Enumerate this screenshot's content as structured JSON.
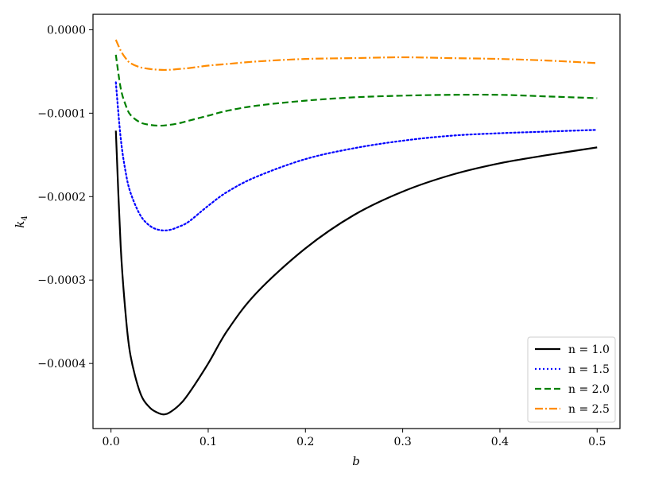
{
  "chart_data": {
    "type": "line",
    "xlabel": "b",
    "ylabel": "k",
    "ylabel_sub": "4",
    "xlim": [
      -0.0185,
      0.5235
    ],
    "ylim": [
      -0.000478,
      1.85e-05
    ],
    "x_ticks": [
      0.0,
      0.1,
      0.2,
      0.3,
      0.4,
      0.5
    ],
    "x_tick_labels": [
      "0.0",
      "0.1",
      "0.2",
      "0.3",
      "0.4",
      "0.5"
    ],
    "y_ticks": [
      0.0,
      -0.0001,
      -0.0002,
      -0.0003,
      -0.0004
    ],
    "y_tick_labels": [
      "0.0000",
      "−0.0001",
      "−0.0002",
      "−0.0003",
      "−0.0004"
    ],
    "grid": false,
    "legend_position": "lower-right",
    "series": [
      {
        "name": "n = 1.0",
        "color": "#000000",
        "dash": "solid",
        "x": [
          0.005,
          0.01,
          0.015,
          0.02,
          0.03,
          0.04,
          0.05,
          0.055,
          0.06,
          0.07,
          0.08,
          0.1,
          0.12,
          0.15,
          0.2,
          0.25,
          0.3,
          0.35,
          0.4,
          0.45,
          0.5
        ],
        "y": [
          -0.000121,
          -0.00026,
          -0.00034,
          -0.00039,
          -0.000435,
          -0.000453,
          -0.00046,
          -0.000461,
          -0.000459,
          -0.00045,
          -0.000436,
          -0.0004,
          -0.00036,
          -0.000315,
          -0.000262,
          -0.000222,
          -0.000194,
          -0.000174,
          -0.00016,
          -0.00015,
          -0.000141
        ]
      },
      {
        "name": "n = 1.5",
        "color": "#0000ff",
        "dash": "dotted",
        "x": [
          0.005,
          0.01,
          0.015,
          0.02,
          0.03,
          0.04,
          0.05,
          0.06,
          0.07,
          0.08,
          0.1,
          0.12,
          0.15,
          0.2,
          0.25,
          0.3,
          0.35,
          0.4,
          0.45,
          0.5
        ],
        "y": [
          -6.3e-05,
          -0.00013,
          -0.00017,
          -0.000195,
          -0.000222,
          -0.000235,
          -0.00024,
          -0.00024,
          -0.000236,
          -0.00023,
          -0.000211,
          -0.000194,
          -0.000176,
          -0.000155,
          -0.000142,
          -0.000133,
          -0.000127,
          -0.000124,
          -0.000122,
          -0.00012
        ]
      },
      {
        "name": "n = 2.0",
        "color": "#008000",
        "dash": "dashed",
        "x": [
          0.005,
          0.01,
          0.015,
          0.02,
          0.03,
          0.04,
          0.05,
          0.06,
          0.07,
          0.08,
          0.1,
          0.12,
          0.15,
          0.2,
          0.25,
          0.3,
          0.35,
          0.4,
          0.45,
          0.5
        ],
        "y": [
          -3e-05,
          -7e-05,
          -9e-05,
          -0.000102,
          -0.000111,
          -0.000114,
          -0.000115,
          -0.000114,
          -0.000112,
          -0.000109,
          -0.000103,
          -9.7e-05,
          -9.1e-05,
          -8.5e-05,
          -8.1e-05,
          -7.9e-05,
          -7.8e-05,
          -7.8e-05,
          -8e-05,
          -8.2e-05
        ]
      },
      {
        "name": "n = 2.5",
        "color": "#ff8c00",
        "dash": "dashdot",
        "x": [
          0.005,
          0.01,
          0.015,
          0.02,
          0.03,
          0.04,
          0.05,
          0.06,
          0.07,
          0.08,
          0.1,
          0.12,
          0.15,
          0.2,
          0.25,
          0.3,
          0.35,
          0.4,
          0.45,
          0.5
        ],
        "y": [
          -1.2e-05,
          -2.5e-05,
          -3.4e-05,
          -4e-05,
          -4.5e-05,
          -4.7e-05,
          -4.8e-05,
          -4.8e-05,
          -4.7e-05,
          -4.6e-05,
          -4.3e-05,
          -4.1e-05,
          -3.8e-05,
          -3.5e-05,
          -3.4e-05,
          -3.3e-05,
          -3.4e-05,
          -3.5e-05,
          -3.7e-05,
          -4e-05
        ]
      }
    ]
  }
}
